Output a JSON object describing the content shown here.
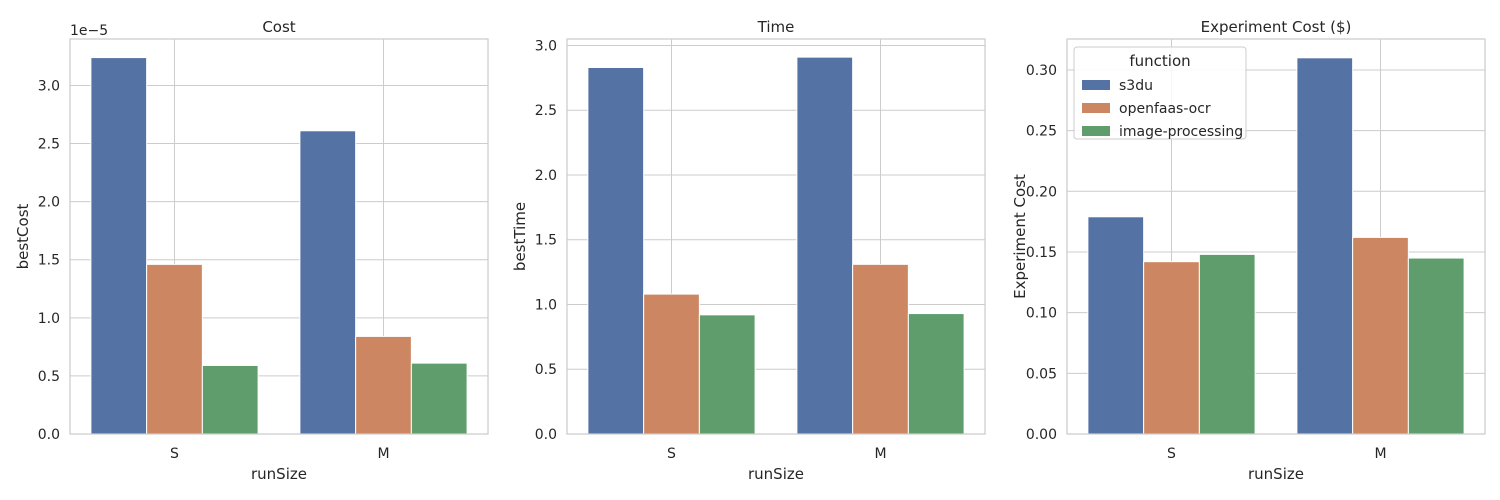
{
  "colors": {
    "s3du": "#5572a5",
    "openfaas-ocr": "#cc8762",
    "image-processing": "#5f9e6c",
    "grid": "#cccccc",
    "spine": "#cccccc",
    "text": "#262626"
  },
  "chart_data": [
    {
      "type": "bar",
      "title": "Cost",
      "xlabel": "runSize",
      "ylabel": "bestCost",
      "offset_text": "1e−5",
      "categories": [
        "S",
        "M"
      ],
      "ylim": [
        0,
        3.4
      ],
      "yticks": [
        0.0,
        0.5,
        1.0,
        1.5,
        2.0,
        2.5,
        3.0
      ],
      "ytick_labels": [
        "0.0",
        "0.5",
        "1.0",
        "1.5",
        "2.0",
        "2.5",
        "3.0"
      ],
      "grid": true,
      "legend": false,
      "series": [
        {
          "name": "s3du",
          "values": [
            3.24,
            2.61
          ]
        },
        {
          "name": "openfaas-ocr",
          "values": [
            1.46,
            0.84
          ]
        },
        {
          "name": "image-processing",
          "values": [
            0.59,
            0.61
          ]
        }
      ]
    },
    {
      "type": "bar",
      "title": "Time",
      "xlabel": "runSize",
      "ylabel": "bestTime",
      "offset_text": "",
      "categories": [
        "S",
        "M"
      ],
      "ylim": [
        0,
        3.05
      ],
      "yticks": [
        0.0,
        0.5,
        1.0,
        1.5,
        2.0,
        2.5,
        3.0
      ],
      "ytick_labels": [
        "0.0",
        "0.5",
        "1.0",
        "1.5",
        "2.0",
        "2.5",
        "3.0"
      ],
      "grid": true,
      "legend": false,
      "series": [
        {
          "name": "s3du",
          "values": [
            2.83,
            2.91
          ]
        },
        {
          "name": "openfaas-ocr",
          "values": [
            1.08,
            1.31
          ]
        },
        {
          "name": "image-processing",
          "values": [
            0.92,
            0.93
          ]
        }
      ]
    },
    {
      "type": "bar",
      "title": "Experiment Cost ($)",
      "xlabel": "runSize",
      "ylabel": "Experiment Cost",
      "offset_text": "",
      "categories": [
        "S",
        "M"
      ],
      "ylim": [
        0,
        0.3255
      ],
      "yticks": [
        0.0,
        0.05,
        0.1,
        0.15,
        0.2,
        0.25,
        0.3
      ],
      "ytick_labels": [
        "0.00",
        "0.05",
        "0.10",
        "0.15",
        "0.20",
        "0.25",
        "0.30"
      ],
      "grid": true,
      "legend": true,
      "legend_position": "top-left",
      "legend_title": "function",
      "series": [
        {
          "name": "s3du",
          "values": [
            0.179,
            0.31
          ]
        },
        {
          "name": "openfaas-ocr",
          "values": [
            0.142,
            0.162
          ]
        },
        {
          "name": "image-processing",
          "values": [
            0.148,
            0.145
          ]
        }
      ]
    }
  ]
}
